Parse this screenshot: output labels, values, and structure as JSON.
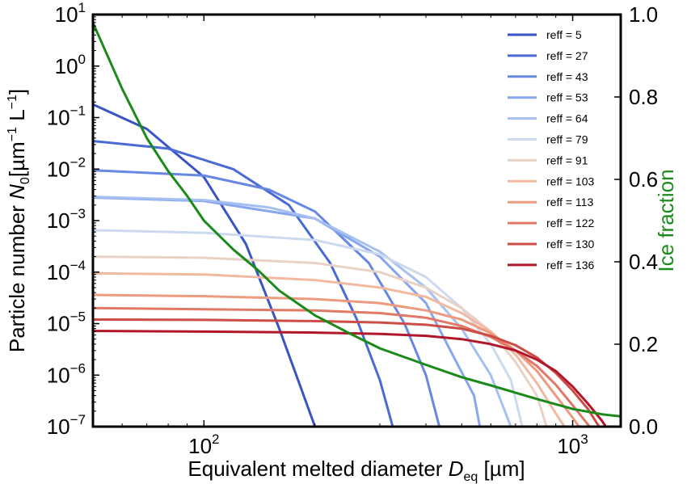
{
  "chart_data": {
    "type": "line",
    "title": "",
    "xlabel": "Equivalent melted diameter D_eq [µm]",
    "xlabel_parts": {
      "pre": "Equivalent melted diameter ",
      "sym": "D",
      "sub": "eq",
      "post": " [µm]"
    },
    "ylabel": "Particle number N_0 [µm^−1 L^−1]",
    "ylabel_parts": {
      "pre": "Particle number ",
      "sym": "N",
      "sub": "0",
      "post1": "[µm",
      "sup1": "−1",
      "post2": " L",
      "sup2": "−1",
      "post3": "]"
    },
    "y2label": "Ice fraction",
    "x_scale": "log",
    "y_scale": "log",
    "xlim": [
      50,
      1350
    ],
    "ylim": [
      1e-07,
      10
    ],
    "y2lim": [
      0,
      1
    ],
    "x_ticks": [
      {
        "value": 100,
        "base": "10",
        "exp": "2"
      },
      {
        "value": 1000,
        "base": "10",
        "exp": "3"
      }
    ],
    "y_ticks": [
      {
        "value": 10,
        "base": "10",
        "exp": "1"
      },
      {
        "value": 1,
        "base": "10",
        "exp": "0"
      },
      {
        "value": 0.1,
        "base": "10",
        "exp": "−1"
      },
      {
        "value": 0.01,
        "base": "10",
        "exp": "−2"
      },
      {
        "value": 0.001,
        "base": "10",
        "exp": "−3"
      },
      {
        "value": 0.0001,
        "base": "10",
        "exp": "−4"
      },
      {
        "value": 1e-05,
        "base": "10",
        "exp": "−5"
      },
      {
        "value": 1e-06,
        "base": "10",
        "exp": "−6"
      },
      {
        "value": 1e-07,
        "base": "10",
        "exp": "−7"
      }
    ],
    "y2_ticks": [
      {
        "value": 1.0,
        "label": "1.0"
      },
      {
        "value": 0.8,
        "label": "0.8"
      },
      {
        "value": 0.6,
        "label": "0.6"
      },
      {
        "value": 0.4,
        "label": "0.4"
      },
      {
        "value": 0.2,
        "label": "0.2"
      },
      {
        "value": 0.0,
        "label": "0.0"
      }
    ],
    "grid": false,
    "legend_position": "top-right",
    "series": [
      {
        "name": "reff = 5",
        "color": "#3a54c4",
        "points": [
          [
            50,
            0.18
          ],
          [
            70,
            0.06
          ],
          [
            100,
            0.007
          ],
          [
            130,
            0.00035
          ],
          [
            160,
            8e-06
          ],
          [
            180,
            8e-07
          ],
          [
            200,
            1e-07
          ]
        ]
      },
      {
        "name": "reff = 27",
        "color": "#4a6ad6",
        "points": [
          [
            50,
            0.035
          ],
          [
            80,
            0.025
          ],
          [
            120,
            0.01
          ],
          [
            170,
            0.002
          ],
          [
            220,
            0.00015
          ],
          [
            260,
            1.2e-05
          ],
          [
            300,
            8e-07
          ],
          [
            325,
            1e-07
          ]
        ]
      },
      {
        "name": "reff = 43",
        "color": "#6688e2",
        "points": [
          [
            50,
            0.0095
          ],
          [
            100,
            0.0075
          ],
          [
            150,
            0.004
          ],
          [
            200,
            0.0015
          ],
          [
            280,
            0.00015
          ],
          [
            350,
            1e-05
          ],
          [
            400,
            1e-06
          ],
          [
            435,
            1e-07
          ]
        ]
      },
      {
        "name": "reff = 53",
        "color": "#86a6ee",
        "points": [
          [
            50,
            0.0028
          ],
          [
            100,
            0.0024
          ],
          [
            200,
            0.0011
          ],
          [
            300,
            0.0002
          ],
          [
            400,
            2.5e-05
          ],
          [
            480,
            2e-06
          ],
          [
            540,
            4e-07
          ],
          [
            560,
            1e-07
          ]
        ]
      },
      {
        "name": "reff = 64",
        "color": "#a7c0f2",
        "points": [
          [
            50,
            0.0029
          ],
          [
            100,
            0.0025
          ],
          [
            150,
            0.0018
          ],
          [
            200,
            0.0011
          ],
          [
            300,
            0.00025
          ],
          [
            400,
            5e-05
          ],
          [
            500,
            8e-06
          ],
          [
            600,
            1e-06
          ],
          [
            680,
            1e-07
          ]
        ]
      },
      {
        "name": "reff = 79",
        "color": "#ccd9ef",
        "points": [
          [
            50,
            0.00065
          ],
          [
            100,
            0.00058
          ],
          [
            200,
            0.00042
          ],
          [
            300,
            0.00022
          ],
          [
            400,
            8e-05
          ],
          [
            500,
            2e-05
          ],
          [
            600,
            4e-06
          ],
          [
            680,
            8e-07
          ],
          [
            730,
            1e-07
          ]
        ]
      },
      {
        "name": "reff = 91",
        "color": "#e8d2c6",
        "points": [
          [
            50,
            0.0002
          ],
          [
            100,
            0.00019
          ],
          [
            200,
            0.00015
          ],
          [
            300,
            0.0001
          ],
          [
            400,
            5e-05
          ],
          [
            500,
            2e-05
          ],
          [
            600,
            7e-06
          ],
          [
            700,
            1.8e-06
          ],
          [
            800,
            4e-07
          ],
          [
            850,
            1e-07
          ]
        ]
      },
      {
        "name": "reff = 103",
        "color": "#f2b9a1",
        "points": [
          [
            50,
            9.5e-05
          ],
          [
            100,
            9e-05
          ],
          [
            200,
            7e-05
          ],
          [
            300,
            5e-05
          ],
          [
            400,
            3.3e-05
          ],
          [
            500,
            1.6e-05
          ],
          [
            600,
            7e-06
          ],
          [
            700,
            2.5e-06
          ],
          [
            800,
            7e-07
          ],
          [
            900,
            1.8e-07
          ],
          [
            950,
            1e-07
          ]
        ]
      },
      {
        "name": "reff = 113",
        "color": "#ec9a80",
        "points": [
          [
            50,
            3.6e-05
          ],
          [
            100,
            3.4e-05
          ],
          [
            200,
            3e-05
          ],
          [
            300,
            2.5e-05
          ],
          [
            400,
            1.8e-05
          ],
          [
            500,
            1.2e-05
          ],
          [
            600,
            6.5e-06
          ],
          [
            700,
            3e-06
          ],
          [
            800,
            1.2e-06
          ],
          [
            900,
            4e-07
          ],
          [
            1000,
            1.5e-07
          ],
          [
            1040,
            1e-07
          ]
        ]
      },
      {
        "name": "reff = 122",
        "color": "#e07a66",
        "points": [
          [
            50,
            2e-05
          ],
          [
            100,
            1.9e-05
          ],
          [
            200,
            1.8e-05
          ],
          [
            300,
            1.6e-05
          ],
          [
            400,
            1.3e-05
          ],
          [
            500,
            9e-06
          ],
          [
            600,
            5.5e-06
          ],
          [
            700,
            3e-06
          ],
          [
            800,
            1.5e-06
          ],
          [
            900,
            6.5e-07
          ],
          [
            1000,
            2.6e-07
          ],
          [
            1100,
            1.1e-07
          ],
          [
            1110,
            1e-07
          ]
        ]
      },
      {
        "name": "reff = 130",
        "color": "#cc4c46",
        "points": [
          [
            50,
            1.2e-05
          ],
          [
            100,
            1.18e-05
          ],
          [
            200,
            1.12e-05
          ],
          [
            300,
            1.05e-05
          ],
          [
            400,
            9.5e-06
          ],
          [
            500,
            8e-06
          ],
          [
            600,
            5.8e-06
          ],
          [
            700,
            3.8e-06
          ],
          [
            800,
            2.2e-06
          ],
          [
            900,
            1.1e-06
          ],
          [
            1000,
            5e-07
          ],
          [
            1100,
            2.2e-07
          ],
          [
            1180,
            1e-07
          ]
        ]
      },
      {
        "name": "reff = 136",
        "color": "#b2182b",
        "points": [
          [
            50,
            7.2e-06
          ],
          [
            100,
            7e-06
          ],
          [
            200,
            6.7e-06
          ],
          [
            300,
            6.3e-06
          ],
          [
            400,
            5.8e-06
          ],
          [
            500,
            5e-06
          ],
          [
            600,
            4e-06
          ],
          [
            700,
            3e-06
          ],
          [
            800,
            2e-06
          ],
          [
            900,
            1.2e-06
          ],
          [
            1000,
            6e-07
          ],
          [
            1100,
            2.8e-07
          ],
          [
            1200,
            1.3e-07
          ],
          [
            1230,
            1e-07
          ]
        ]
      }
    ],
    "ice_fraction": {
      "color": "#1a8a1a",
      "points": [
        [
          50,
          0.98
        ],
        [
          60,
          0.82
        ],
        [
          70,
          0.7
        ],
        [
          80,
          0.62
        ],
        [
          90,
          0.56
        ],
        [
          100,
          0.5
        ],
        [
          120,
          0.43
        ],
        [
          140,
          0.38
        ],
        [
          160,
          0.33
        ],
        [
          200,
          0.27
        ],
        [
          250,
          0.225
        ],
        [
          300,
          0.19
        ],
        [
          400,
          0.15
        ],
        [
          500,
          0.12
        ],
        [
          600,
          0.1
        ],
        [
          800,
          0.067
        ],
        [
          1000,
          0.043
        ],
        [
          1200,
          0.03
        ],
        [
          1350,
          0.025
        ]
      ]
    }
  }
}
